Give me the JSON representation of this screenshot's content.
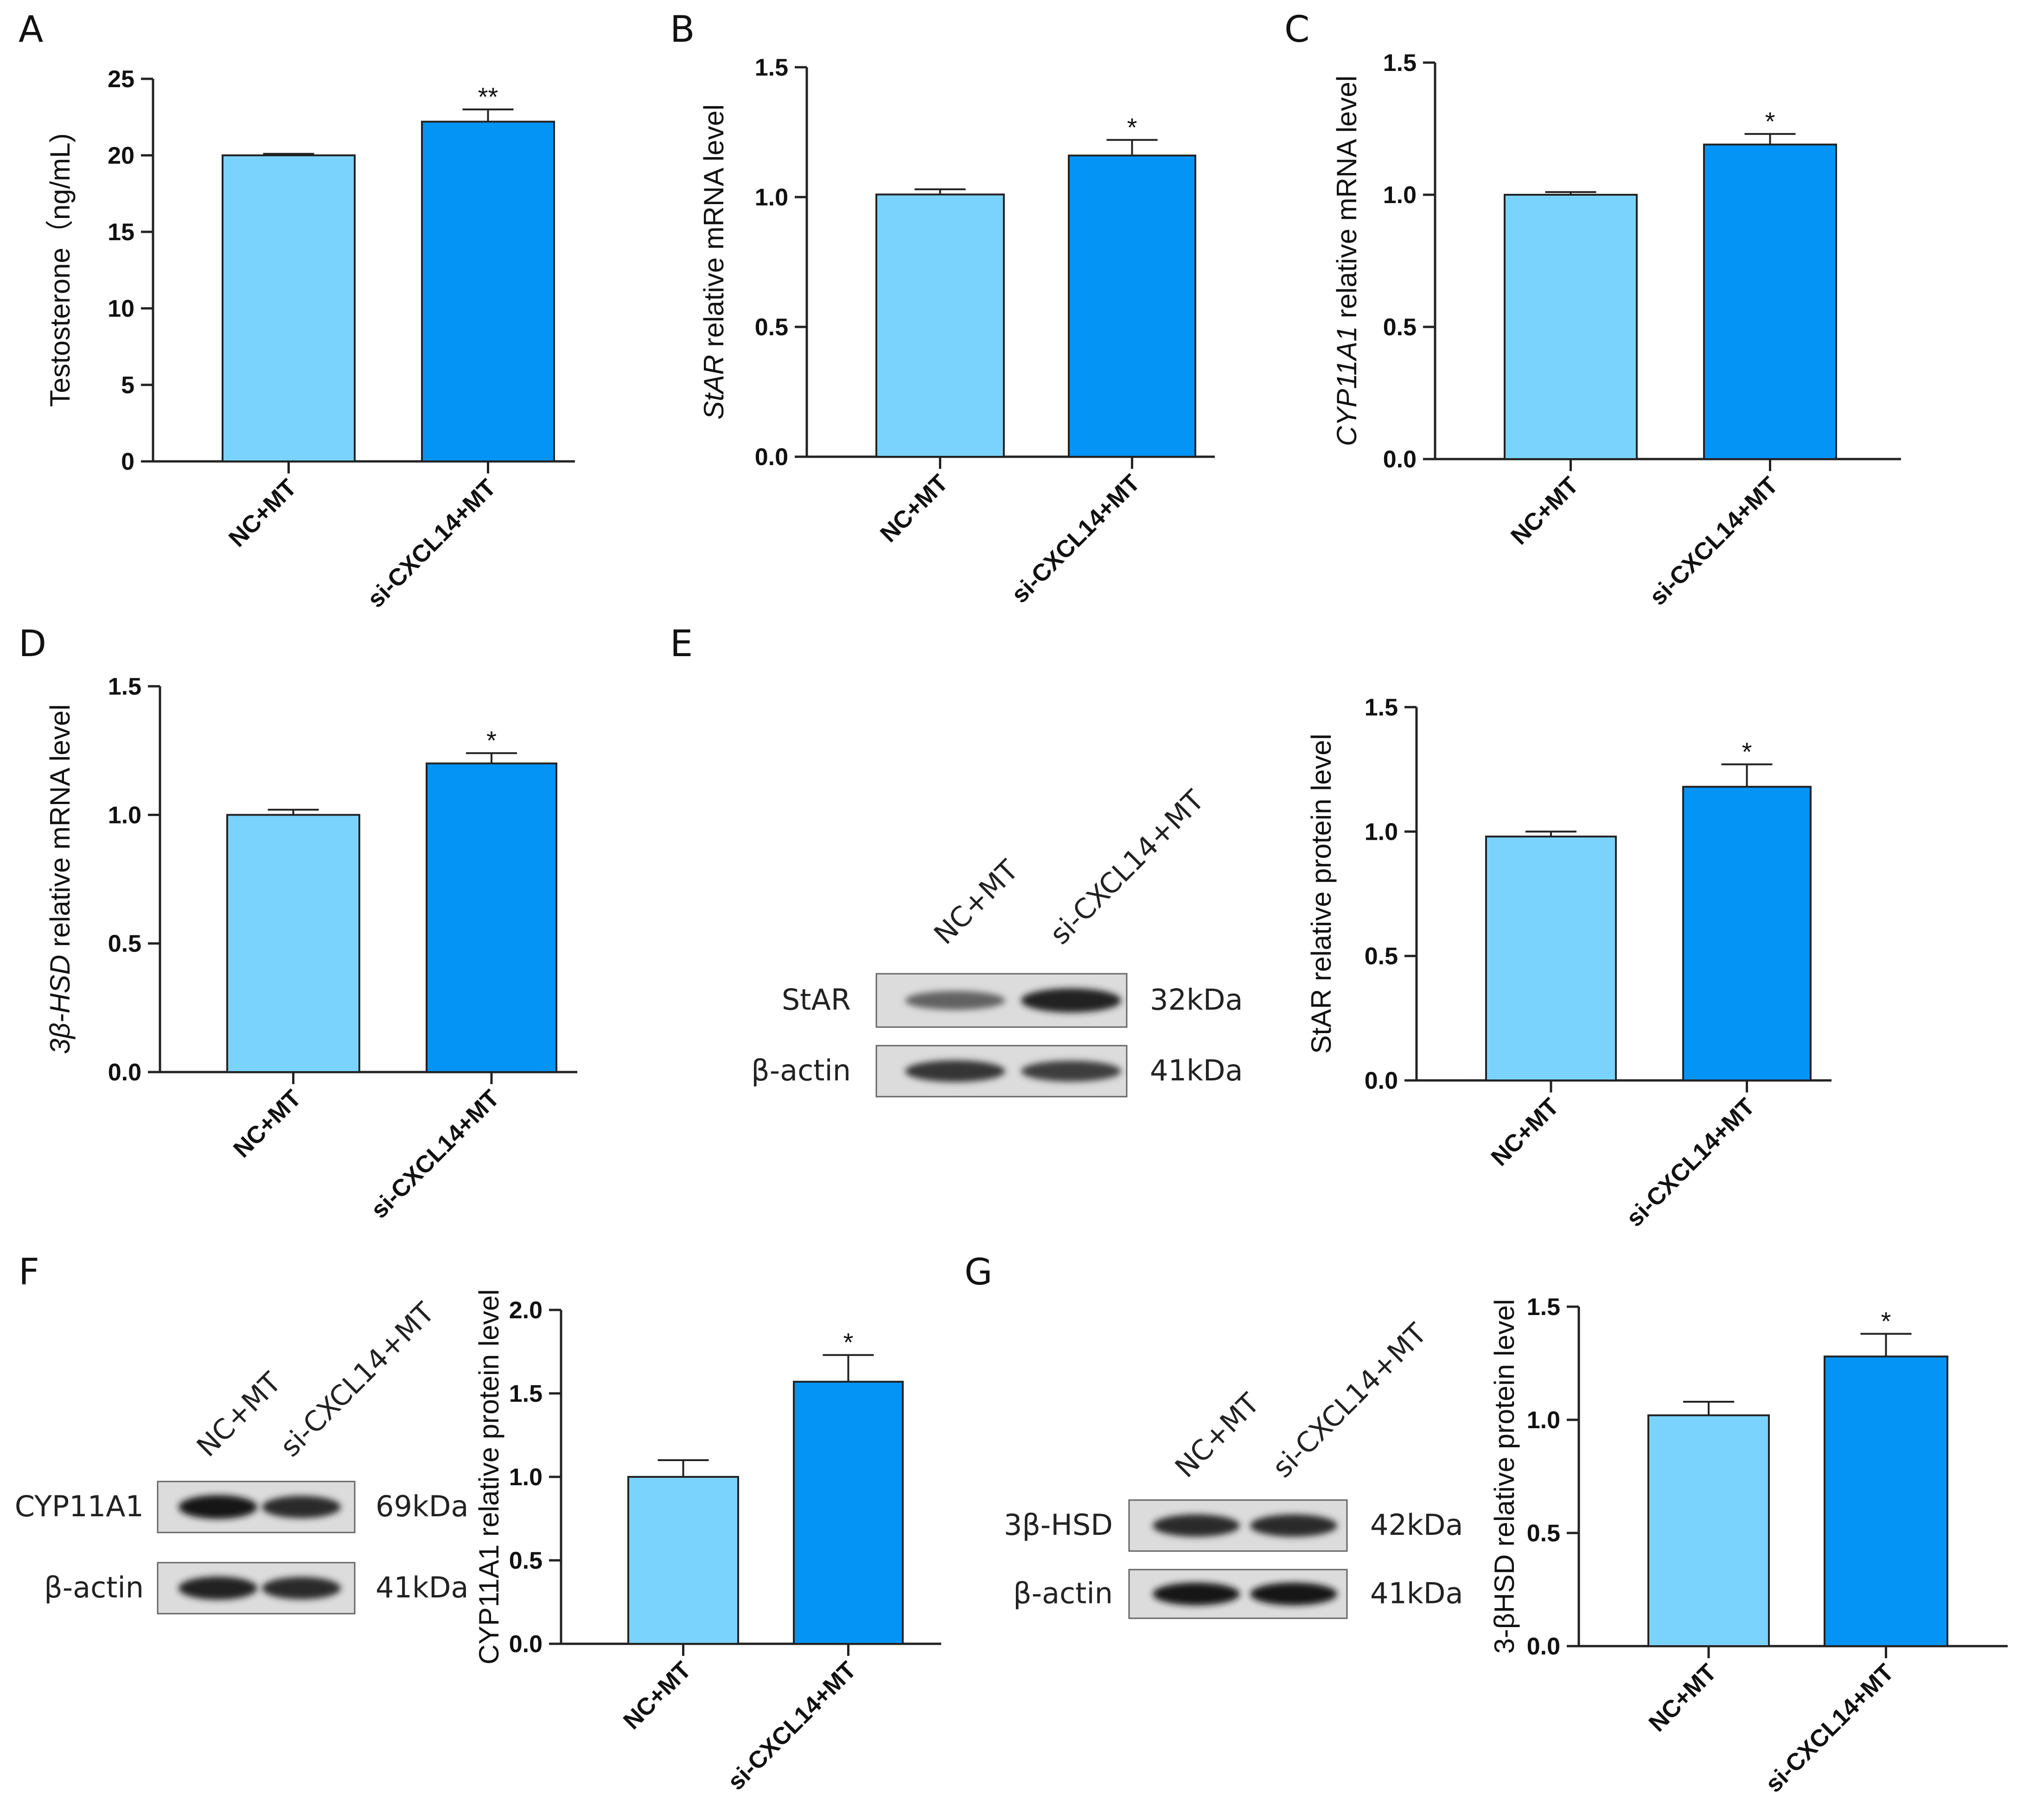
{
  "colors": {
    "light_bar": "#7AD3FC",
    "dark_bar": "#0394F6",
    "axis": "#222222"
  },
  "chart_data": [
    {
      "panel": "A",
      "type": "bar",
      "categories": [
        "NC+MT",
        "si-CXCL14+MT"
      ],
      "values": [
        20.0,
        22.2
      ],
      "errors": [
        0.1,
        0.8
      ],
      "significance": [
        "",
        "**"
      ],
      "ylabel": "Testosterone（ng/mL)",
      "ylabel_parts": [
        {
          "text": "Testosterone（ng/mL)",
          "italic": false
        }
      ],
      "ylim": [
        0,
        25
      ],
      "ticks": [
        0,
        5,
        10,
        15,
        20,
        25
      ],
      "tick_labels": [
        "0",
        "5",
        "10",
        "15",
        "20",
        "25"
      ]
    },
    {
      "panel": "B",
      "type": "bar",
      "categories": [
        "NC+MT",
        "si-CXCL14+MT"
      ],
      "values": [
        1.01,
        1.16
      ],
      "errors": [
        0.02,
        0.06
      ],
      "significance": [
        "",
        "*"
      ],
      "ylabel": "StAR relative mRNA level",
      "ylabel_parts": [
        {
          "text": "StAR",
          "italic": true
        },
        {
          "text": " relative mRNA level",
          "italic": false
        }
      ],
      "ylim": [
        0,
        1.5
      ],
      "ticks": [
        0,
        0.5,
        1.0,
        1.5
      ],
      "tick_labels": [
        "0.0",
        "0.5",
        "1.0",
        "1.5"
      ]
    },
    {
      "panel": "C",
      "type": "bar",
      "categories": [
        "NC+MT",
        "si-CXCL14+MT"
      ],
      "values": [
        1.0,
        1.19
      ],
      "errors": [
        0.01,
        0.04
      ],
      "significance": [
        "",
        "*"
      ],
      "ylabel": "CYP11A1 relative mRNA level",
      "ylabel_parts": [
        {
          "text": "CYP11A1",
          "italic": true
        },
        {
          "text": " relative mRNA level",
          "italic": false
        }
      ],
      "ylim": [
        0,
        1.5
      ],
      "ticks": [
        0,
        0.5,
        1.0,
        1.5
      ],
      "tick_labels": [
        "0.0",
        "0.5",
        "1.0",
        "1.5"
      ]
    },
    {
      "panel": "D",
      "type": "bar",
      "categories": [
        "NC+MT",
        "si-CXCL14+MT"
      ],
      "values": [
        1.0,
        1.2
      ],
      "errors": [
        0.02,
        0.04
      ],
      "significance": [
        "",
        "*"
      ],
      "ylabel": "3β-HSD relative mRNA level",
      "ylabel_parts": [
        {
          "text": "3β-HSD",
          "italic": true
        },
        {
          "text": " relative mRNA level",
          "italic": false
        }
      ],
      "ylim": [
        0,
        1.5
      ],
      "ticks": [
        0,
        0.5,
        1.0,
        1.5
      ],
      "tick_labels": [
        "0.0",
        "0.5",
        "1.0",
        "1.5"
      ]
    },
    {
      "panel": "E",
      "type": "bar",
      "categories": [
        "NC+MT",
        "si-CXCL14+MT"
      ],
      "values": [
        0.98,
        1.18
      ],
      "errors": [
        0.02,
        0.09
      ],
      "significance": [
        "",
        "*"
      ],
      "ylabel": "StAR relative protein level",
      "ylabel_parts": [
        {
          "text": "StAR relative protein level",
          "italic": false
        }
      ],
      "ylim": [
        0,
        1.5
      ],
      "ticks": [
        0,
        0.5,
        1.0,
        1.5
      ],
      "tick_labels": [
        "0.0",
        "0.5",
        "1.0",
        "1.5"
      ]
    },
    {
      "panel": "F",
      "type": "bar",
      "categories": [
        "NC+MT",
        "si-CXCL14+MT"
      ],
      "values": [
        1.0,
        1.57
      ],
      "errors": [
        0.1,
        0.16
      ],
      "significance": [
        "",
        "*"
      ],
      "ylabel": "CYP11A1 relative protein level",
      "ylabel_parts": [
        {
          "text": "CYP11A1 relative protein level",
          "italic": false
        }
      ],
      "ylim": [
        0,
        2.0
      ],
      "ticks": [
        0,
        0.5,
        1.0,
        1.5,
        2.0
      ],
      "tick_labels": [
        "0.0",
        "0.5",
        "1.0",
        "1.5",
        "2.0"
      ]
    },
    {
      "panel": "G",
      "type": "bar",
      "categories": [
        "NC+MT",
        "si-CXCL14+MT"
      ],
      "values": [
        1.02,
        1.28
      ],
      "errors": [
        0.06,
        0.1
      ],
      "significance": [
        "",
        "*"
      ],
      "ylabel": "3-βHSD relative protein level",
      "ylabel_parts": [
        {
          "text": "3-βHSD relative protein level",
          "italic": false
        }
      ],
      "ylim": [
        0,
        1.5
      ],
      "ticks": [
        0,
        0.5,
        1.0,
        1.5
      ],
      "tick_labels": [
        "0.0",
        "0.5",
        "1.0",
        "1.5"
      ]
    }
  ],
  "blots": [
    {
      "panel": "E",
      "lanes": [
        "NC+MT",
        "si-CXCL14+MT"
      ],
      "rows": [
        {
          "protein": "StAR",
          "size": "32kDa",
          "intensities": [
            0.55,
            0.9
          ]
        },
        {
          "protein": "β-actin",
          "size": "41kDa",
          "intensities": [
            0.8,
            0.75
          ]
        }
      ]
    },
    {
      "panel": "F",
      "lanes": [
        "NC+MT",
        "si-CXCL14+MT"
      ],
      "rows": [
        {
          "protein": "CYP11A1",
          "size": "69kDa",
          "intensities": [
            0.95,
            0.85
          ]
        },
        {
          "protein": "β-actin",
          "size": "41kDa",
          "intensities": [
            0.9,
            0.85
          ]
        }
      ]
    },
    {
      "panel": "G",
      "lanes": [
        "NC+MT",
        "si-CXCL14+MT"
      ],
      "rows": [
        {
          "protein": "3β-HSD",
          "size": "42kDa",
          "intensities": [
            0.85,
            0.85
          ]
        },
        {
          "protein": "β-actin",
          "size": "41kDa",
          "intensities": [
            0.95,
            0.95
          ]
        }
      ]
    }
  ]
}
